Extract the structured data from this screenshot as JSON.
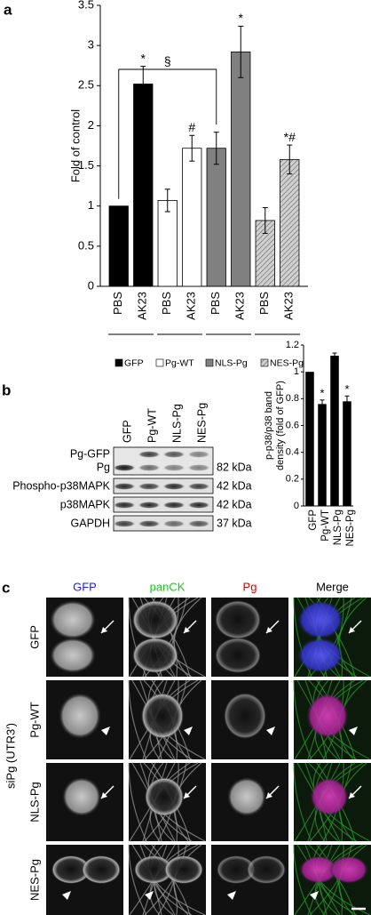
{
  "panels": [
    "a",
    "b",
    "c"
  ],
  "chart_data": [
    {
      "type": "bar",
      "ylabel": "Fold of control",
      "categories": [
        "PBS",
        "AK23"
      ],
      "ylim": [
        0,
        3.5
      ],
      "yticks": [
        0,
        0.5,
        1,
        1.5,
        2,
        2.5,
        3,
        3.5
      ],
      "bracket_label": "§",
      "series": [
        {
          "name": "GFP",
          "color": "#000000",
          "values": [
            1,
            2.52
          ],
          "errors": [
            null,
            0.22
          ],
          "annotations": [
            null,
            "*"
          ]
        },
        {
          "name": "Pg-WT",
          "color": "#ffffff",
          "values": [
            1.07,
            1.72
          ],
          "errors": [
            0.14,
            0.16
          ],
          "annotations": [
            null,
            "#"
          ]
        },
        {
          "name": "NLS-Pg",
          "color": "#808080",
          "values": [
            1.72,
            2.92
          ],
          "errors": [
            0.2,
            0.32
          ],
          "annotations": [
            null,
            "*"
          ]
        },
        {
          "name": "NES-Pg",
          "color": "#d0d0d0",
          "hatch": true,
          "values": [
            0.82,
            1.58
          ],
          "errors": [
            0.16,
            0.18
          ],
          "annotations": [
            null,
            "*#"
          ]
        }
      ]
    },
    {
      "type": "bar",
      "ylabel": [
        "p-p38/p38 band",
        "density (fold of GFP)"
      ],
      "categories": [
        "GFP",
        "Pg-WT",
        "NLS-Pg",
        "NES-Pg"
      ],
      "values": [
        1,
        0.76,
        1.12,
        0.78
      ],
      "errors": [
        null,
        0.03,
        0.02,
        0.04
      ],
      "annotations": [
        null,
        "*",
        null,
        "*"
      ],
      "color": "#000000",
      "ylim": [
        0,
        1.2
      ],
      "yticks": [
        0,
        0.2,
        0.4,
        0.6,
        0.8,
        1,
        1.2
      ]
    }
  ],
  "blot": {
    "lanes": [
      "GFP",
      "Pg-WT",
      "NLS-Pg",
      "NES-Pg"
    ],
    "rows": [
      "Pg-GFP",
      "Pg",
      "Phospho-p38MAPK",
      "p38MAPK",
      "GAPDH"
    ],
    "sizes": [
      "82 kDa",
      "42 kDa",
      "42 kDa",
      "37 kDa"
    ]
  },
  "micrographs": {
    "channels": [
      "GFP",
      "panCK",
      "Pg",
      "Merge"
    ],
    "conditions": [
      "GFP",
      "Pg-WT",
      "NLS-Pg",
      "NES-Pg"
    ],
    "group_label": "siPg (UTR3′)"
  }
}
